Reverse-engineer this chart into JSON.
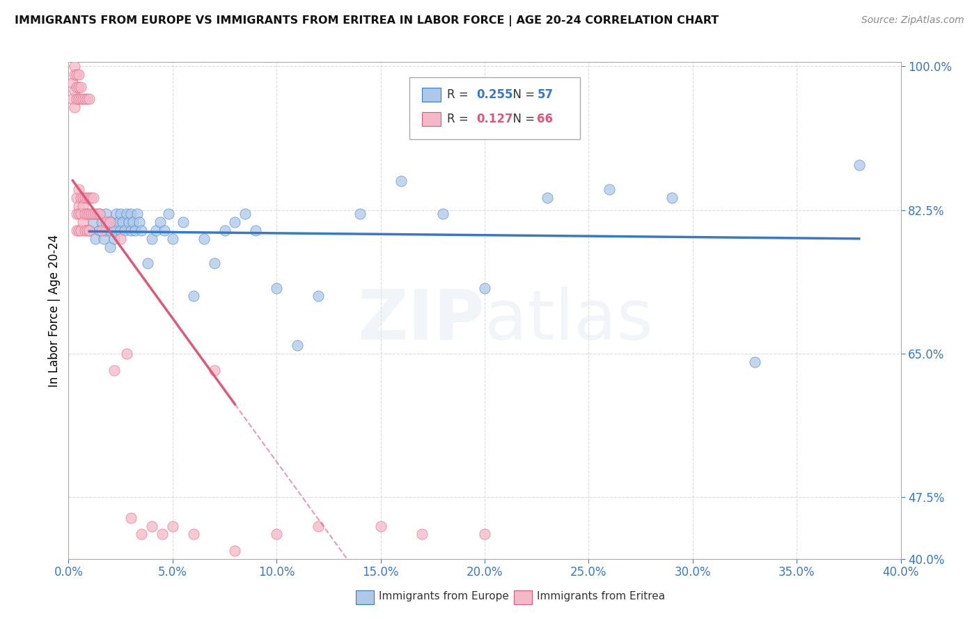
{
  "title": "IMMIGRANTS FROM EUROPE VS IMMIGRANTS FROM ERITREA IN LABOR FORCE | AGE 20-24 CORRELATION CHART",
  "source": "Source: ZipAtlas.com",
  "ylabel_label": "In Labor Force | Age 20-24",
  "R_blue": 0.255,
  "N_blue": 57,
  "R_pink": 0.127,
  "N_pink": 66,
  "legend_label_blue": "Immigrants from Europe",
  "legend_label_pink": "Immigrants from Eritrea",
  "watermark": "ZIPatlas",
  "blue_color": "#adc8e8",
  "blue_line_color": "#3878c8",
  "pink_color": "#f5b8c8",
  "pink_line_color": "#e05878",
  "background_color": "#ffffff",
  "xlim": [
    0.0,
    0.4
  ],
  "ylim": [
    0.4,
    1.005
  ],
  "yticks": [
    0.4,
    0.475,
    0.65,
    0.825,
    1.0
  ],
  "xticks": [
    0.0,
    0.05,
    0.1,
    0.15,
    0.2,
    0.25,
    0.3,
    0.35,
    0.4
  ],
  "blue_scatter_x": [
    0.01,
    0.012,
    0.013,
    0.015,
    0.015,
    0.016,
    0.017,
    0.018,
    0.018,
    0.019,
    0.02,
    0.02,
    0.021,
    0.022,
    0.022,
    0.023,
    0.024,
    0.025,
    0.025,
    0.026,
    0.027,
    0.028,
    0.029,
    0.03,
    0.03,
    0.031,
    0.032,
    0.033,
    0.034,
    0.035,
    0.038,
    0.04,
    0.042,
    0.044,
    0.046,
    0.048,
    0.05,
    0.055,
    0.06,
    0.065,
    0.07,
    0.075,
    0.08,
    0.085,
    0.09,
    0.1,
    0.11,
    0.12,
    0.14,
    0.16,
    0.18,
    0.2,
    0.23,
    0.26,
    0.29,
    0.33,
    0.38
  ],
  "blue_scatter_y": [
    0.8,
    0.81,
    0.79,
    0.8,
    0.82,
    0.81,
    0.79,
    0.8,
    0.82,
    0.81,
    0.78,
    0.8,
    0.81,
    0.79,
    0.8,
    0.82,
    0.81,
    0.8,
    0.82,
    0.81,
    0.8,
    0.82,
    0.81,
    0.8,
    0.82,
    0.81,
    0.8,
    0.82,
    0.81,
    0.8,
    0.76,
    0.79,
    0.8,
    0.81,
    0.8,
    0.82,
    0.79,
    0.81,
    0.72,
    0.79,
    0.76,
    0.8,
    0.81,
    0.82,
    0.8,
    0.73,
    0.66,
    0.72,
    0.82,
    0.86,
    0.82,
    0.73,
    0.84,
    0.85,
    0.84,
    0.64,
    0.88
  ],
  "pink_scatter_x": [
    0.002,
    0.002,
    0.003,
    0.003,
    0.003,
    0.003,
    0.004,
    0.004,
    0.004,
    0.004,
    0.004,
    0.004,
    0.005,
    0.005,
    0.005,
    0.005,
    0.005,
    0.005,
    0.005,
    0.006,
    0.006,
    0.006,
    0.006,
    0.006,
    0.007,
    0.007,
    0.007,
    0.007,
    0.008,
    0.008,
    0.008,
    0.008,
    0.009,
    0.009,
    0.009,
    0.009,
    0.01,
    0.01,
    0.01,
    0.01,
    0.011,
    0.011,
    0.012,
    0.012,
    0.013,
    0.014,
    0.015,
    0.016,
    0.018,
    0.02,
    0.022,
    0.025,
    0.028,
    0.03,
    0.035,
    0.04,
    0.045,
    0.05,
    0.06,
    0.07,
    0.08,
    0.1,
    0.12,
    0.15,
    0.17,
    0.2
  ],
  "pink_scatter_y": [
    0.96,
    0.98,
    0.95,
    0.97,
    0.99,
    1.0,
    0.96,
    0.975,
    0.99,
    0.84,
    0.82,
    0.8,
    0.96,
    0.975,
    0.99,
    0.85,
    0.83,
    0.82,
    0.8,
    0.96,
    0.975,
    0.84,
    0.82,
    0.8,
    0.96,
    0.84,
    0.83,
    0.81,
    0.96,
    0.84,
    0.82,
    0.8,
    0.96,
    0.84,
    0.82,
    0.8,
    0.96,
    0.84,
    0.82,
    0.8,
    0.84,
    0.82,
    0.84,
    0.82,
    0.82,
    0.82,
    0.82,
    0.8,
    0.81,
    0.81,
    0.63,
    0.79,
    0.65,
    0.45,
    0.43,
    0.44,
    0.43,
    0.44,
    0.43,
    0.63,
    0.41,
    0.43,
    0.44,
    0.44,
    0.43,
    0.43
  ]
}
